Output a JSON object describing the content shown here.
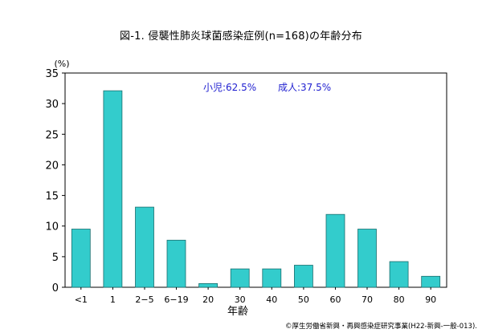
{
  "chart_data": {
    "type": "bar",
    "title": "図-1. 侵襲性肺炎球菌感染症例(n=168)の年齢分布",
    "ylabel": "(%)",
    "xlabel": "年齢",
    "categories": [
      "<1",
      "1",
      "2−5",
      "6−19",
      "20",
      "30",
      "40",
      "50",
      "60",
      "70",
      "80",
      "90"
    ],
    "values": [
      9.5,
      32.1,
      13.1,
      7.7,
      0.6,
      3.0,
      3.0,
      3.6,
      11.9,
      9.5,
      4.2,
      1.8
    ],
    "ylim": [
      0,
      35
    ],
    "yticks": [
      "0",
      "5",
      "10",
      "15",
      "20",
      "25",
      "30",
      "35"
    ],
    "grid": false,
    "bar_color": "#33cccc",
    "bar_edge_color": "#1a6e6e",
    "annotations": [
      {
        "text": "小児:62.5%",
        "color": "#1f1fd0"
      },
      {
        "text": "成人:37.5%",
        "color": "#1f1fd0"
      }
    ]
  },
  "footer": {
    "copyright": "©厚生労働省新興・再興感染症研究事業(H22-新興-一般-013)."
  }
}
